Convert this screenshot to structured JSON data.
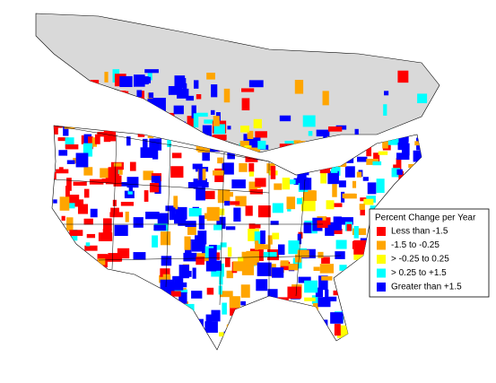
{
  "legend": {
    "title": "Percent Change per Year",
    "items": [
      {
        "label": "Less than -1.5",
        "color": "#ff0000"
      },
      {
        "label": "-1.5 to -0.25",
        "color": "#ffa500"
      },
      {
        "label": "> -0.25 to 0.25",
        "color": "#ffff00"
      },
      {
        "label": "> 0.25 to +1.5",
        "color": "#00ffff"
      },
      {
        "label": "Greater than +1.5",
        "color": "#0000ff"
      }
    ]
  }
}
